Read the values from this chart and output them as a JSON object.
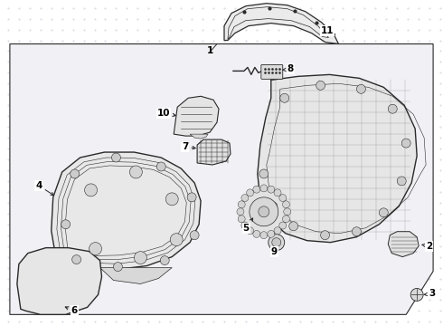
{
  "bg_color": "#ffffff",
  "grid_color": "#d8d8e8",
  "line_color": "#2a2a2a",
  "label_color": "#000000",
  "fig_w": 4.9,
  "fig_h": 3.6,
  "dpi": 100
}
